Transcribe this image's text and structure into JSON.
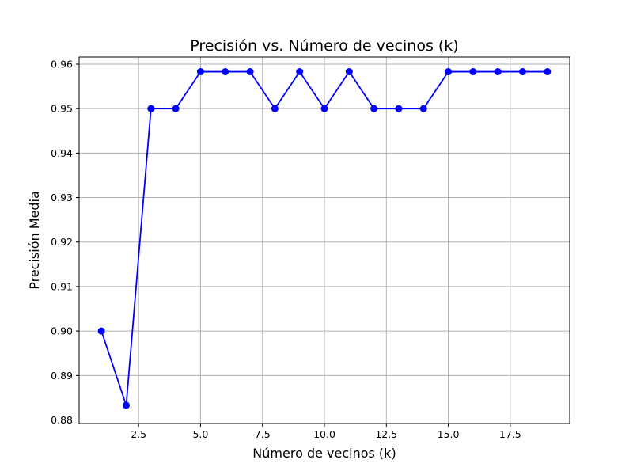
{
  "chart_data": {
    "type": "line",
    "title": "Precisión vs. Número de vecinos (k)",
    "xlabel": "Número de vecinos (k)",
    "ylabel": "Precisión Media",
    "xlim": [
      0.1,
      19.9
    ],
    "ylim": [
      0.8792,
      0.9616
    ],
    "xticks": [
      2.5,
      5.0,
      7.5,
      10.0,
      12.5,
      15.0,
      17.5
    ],
    "xtick_labels": [
      "2.5",
      "5.0",
      "7.5",
      "10.0",
      "12.5",
      "15.0",
      "17.5"
    ],
    "yticks": [
      0.88,
      0.89,
      0.9,
      0.91,
      0.92,
      0.93,
      0.94,
      0.95,
      0.96
    ],
    "ytick_labels": [
      "0.88",
      "0.89",
      "0.90",
      "0.91",
      "0.92",
      "0.93",
      "0.94",
      "0.95",
      "0.96"
    ],
    "grid": true,
    "series": [
      {
        "color": "#0000ff",
        "marker": "circle",
        "x": [
          1,
          2,
          3,
          4,
          5,
          6,
          7,
          8,
          9,
          10,
          11,
          12,
          13,
          14,
          15,
          16,
          17,
          18,
          19
        ],
        "y": [
          0.9,
          0.8833,
          0.95,
          0.95,
          0.9583,
          0.9583,
          0.9583,
          0.95,
          0.9583,
          0.95,
          0.9583,
          0.95,
          0.95,
          0.95,
          0.9583,
          0.9583,
          0.9583,
          0.9583,
          0.9583
        ]
      }
    ]
  }
}
